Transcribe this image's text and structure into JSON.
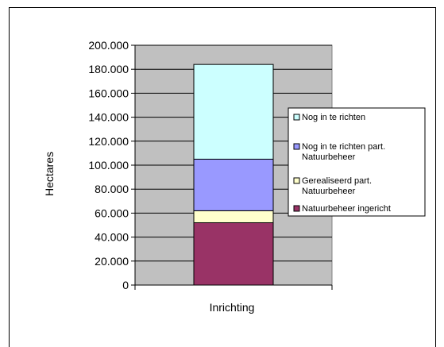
{
  "chart_data": {
    "type": "bar",
    "stacked": true,
    "categories": [
      "Inrichting"
    ],
    "ylabel": "Hectares",
    "ylim": [
      0,
      200000
    ],
    "y_ticks": [
      "0",
      "20.000",
      "40.000",
      "60.000",
      "80.000",
      "100.000",
      "120.000",
      "140.000",
      "160.000",
      "180.000",
      "200.000"
    ],
    "y_tick_values": [
      0,
      20000,
      40000,
      60000,
      80000,
      100000,
      120000,
      140000,
      160000,
      180000,
      200000
    ],
    "grid": true,
    "plot_background": "#c0c0c0",
    "legend_position": "right",
    "series": [
      {
        "name": "Natuurbeheer ingericht",
        "legend_lines": [
          "Natuurbeheer ingericht"
        ],
        "values": [
          52000
        ],
        "color": "#993366"
      },
      {
        "name": "Gerealiseerd part. Natuurbeheer",
        "legend_lines": [
          "Gerealiseerd part.",
          "Natuurbeheer"
        ],
        "values": [
          10000
        ],
        "color": "#ffffcc"
      },
      {
        "name": "Nog in te richten part. Natuurbeheer",
        "legend_lines": [
          "Nog in te richten part.",
          "Natuurbeheer"
        ],
        "values": [
          43000
        ],
        "color": "#9999ff"
      },
      {
        "name": "Nog in te richten",
        "legend_lines": [
          "Nog in te richten"
        ],
        "values": [
          79000
        ],
        "color": "#ccffff"
      }
    ],
    "legend_order": [
      3,
      2,
      1,
      0
    ]
  }
}
